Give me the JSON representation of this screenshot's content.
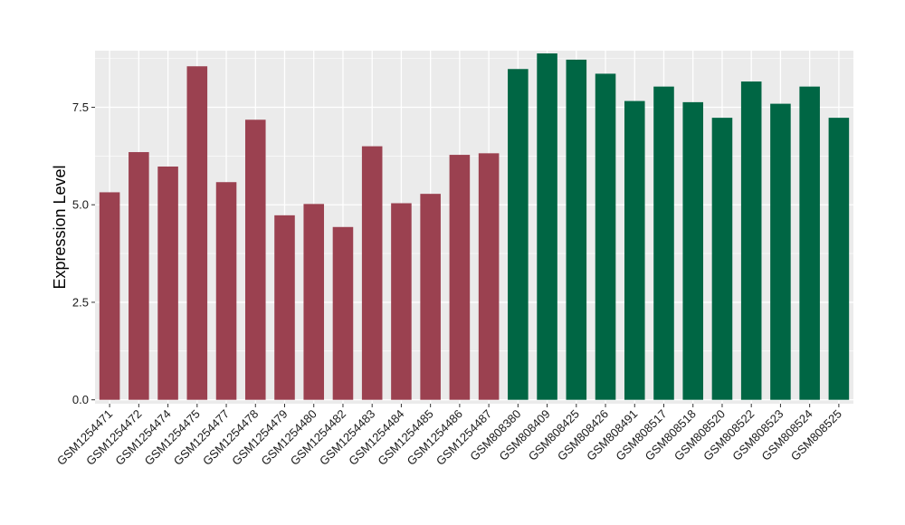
{
  "chart_data": {
    "type": "bar",
    "title": "",
    "xlabel": "",
    "ylabel": "Expression Level",
    "ylim": [
      -0.1,
      8.95
    ],
    "yticks": [
      0.0,
      2.5,
      5.0,
      7.5
    ],
    "ytick_labels": [
      "0.0",
      "2.5",
      "5.0",
      "7.5"
    ],
    "grid": true,
    "legend": "none",
    "categories": [
      "GSM1254471",
      "GSM1254472",
      "GSM1254474",
      "GSM1254475",
      "GSM1254477",
      "GSM1254478",
      "GSM1254479",
      "GSM1254480",
      "GSM1254482",
      "GSM1254483",
      "GSM1254484",
      "GSM1254485",
      "GSM1254486",
      "GSM1254487",
      "GSM808380",
      "GSM808409",
      "GSM808425",
      "GSM808426",
      "GSM808491",
      "GSM808517",
      "GSM808518",
      "GSM808520",
      "GSM808522",
      "GSM808523",
      "GSM808524",
      "GSM808525"
    ],
    "values": [
      5.32,
      6.35,
      5.98,
      8.55,
      5.58,
      7.18,
      4.73,
      5.02,
      4.43,
      6.5,
      5.04,
      5.28,
      6.28,
      6.32,
      8.48,
      8.88,
      8.72,
      8.36,
      7.66,
      8.03,
      7.63,
      7.23,
      8.16,
      7.59,
      8.03,
      7.23
    ],
    "bar_colors": [
      "#9b4150",
      "#9b4150",
      "#9b4150",
      "#9b4150",
      "#9b4150",
      "#9b4150",
      "#9b4150",
      "#9b4150",
      "#9b4150",
      "#9b4150",
      "#9b4150",
      "#9b4150",
      "#9b4150",
      "#9b4150",
      "#006644",
      "#006644",
      "#006644",
      "#006644",
      "#006644",
      "#006644",
      "#006644",
      "#006644",
      "#006644",
      "#006644",
      "#006644",
      "#006644"
    ],
    "panel_background": "#ebebeb",
    "grid_color": "#ffffff"
  }
}
